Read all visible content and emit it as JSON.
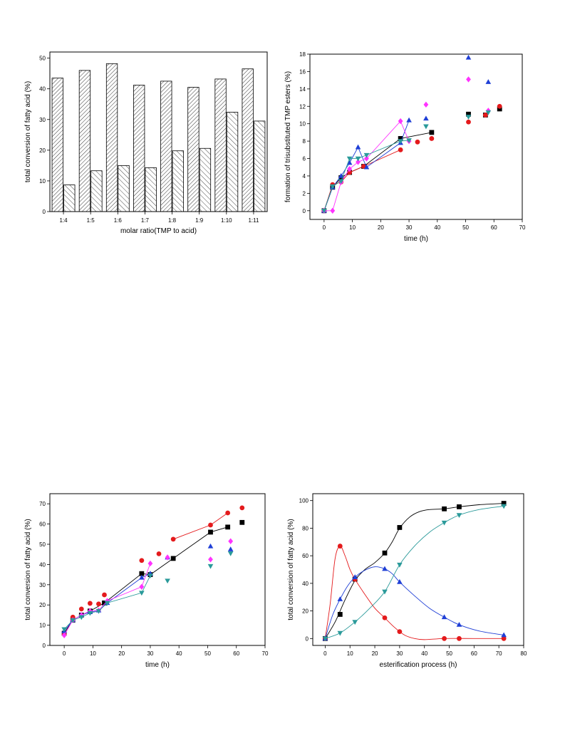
{
  "colors": {
    "black": "#000000",
    "red": "#e41a1c",
    "blue": "#1f3fd6",
    "magenta": "#ff33ff",
    "teal": "#2a9a9a"
  },
  "chart_data": [
    {
      "id": "chart1",
      "type": "bar",
      "xlabel": "molar ratio(TMP to acid)",
      "ylabel": "total conversion of fatty acid (%)",
      "ylim": [
        0,
        52
      ],
      "yticks": [
        0,
        10,
        20,
        30,
        40,
        50
      ],
      "categories": [
        "1:4",
        "1:5",
        "1:6",
        "1:7",
        "1:8",
        "1:9",
        "1:10",
        "1:11"
      ],
      "series": [
        {
          "values": [
            43.5,
            46,
            48.2,
            41.2,
            42.5,
            40.5,
            43.2,
            46.5
          ],
          "pattern": "hatch-dense"
        },
        {
          "values": [
            8.7,
            13.3,
            15,
            14.3,
            19.8,
            20.6,
            32.4,
            29.5
          ],
          "pattern": "hatch-sparse"
        }
      ]
    },
    {
      "id": "chart2",
      "type": "line",
      "xlabel": "time (h)",
      "ylabel": "formation of trisubstituted TMP esters (%)",
      "xlim": [
        -5,
        70
      ],
      "ylim": [
        -1,
        18
      ],
      "xticks": [
        0,
        10,
        20,
        30,
        40,
        50,
        60,
        70
      ],
      "yticks": [
        0,
        2,
        4,
        6,
        8,
        10,
        12,
        14,
        16,
        18
      ],
      "series": [
        {
          "marker": "square",
          "color": "#000000",
          "line": [
            [
              0,
              0
            ],
            [
              3,
              2.7
            ],
            [
              6,
              3.8
            ],
            [
              9,
              4.4
            ],
            [
              14,
              5.1
            ],
            [
              27,
              8.3
            ],
            [
              38,
              9
            ]
          ],
          "points": [
            [
              51,
              11.1
            ],
            [
              57,
              11
            ],
            [
              62,
              11.7
            ]
          ]
        },
        {
          "marker": "circle",
          "color": "#e41a1c",
          "line": [
            [
              0,
              0
            ],
            [
              3,
              3
            ],
            [
              6,
              3.3
            ],
            [
              9,
              4.4
            ],
            [
              14,
              5.1
            ],
            [
              27,
              7
            ]
          ],
          "points": [
            [
              33,
              7.9
            ],
            [
              38,
              8.3
            ],
            [
              51,
              10.2
            ],
            [
              57,
              11
            ],
            [
              62,
              12
            ]
          ]
        },
        {
          "marker": "triangle",
          "color": "#1f3fd6",
          "line": [
            [
              0,
              0
            ],
            [
              3,
              2.7
            ],
            [
              6,
              4
            ],
            [
              9,
              5.5
            ],
            [
              12,
              7.3
            ],
            [
              15,
              5
            ],
            [
              27,
              7.8
            ],
            [
              30,
              10.4
            ]
          ],
          "points": [
            [
              36,
              10.6
            ],
            [
              51,
              17.6
            ],
            [
              58,
              14.8
            ]
          ]
        },
        {
          "marker": "diamond",
          "color": "#ff33ff",
          "line": [
            [
              0,
              0
            ],
            [
              3,
              0
            ],
            [
              6,
              3.3
            ],
            [
              9,
              4.8
            ],
            [
              12,
              5.6
            ],
            [
              15,
              6
            ],
            [
              27,
              10.3
            ],
            [
              30,
              8
            ]
          ],
          "points": [
            [
              36,
              12.2
            ],
            [
              51,
              15.1
            ],
            [
              58,
              11.5
            ]
          ]
        },
        {
          "marker": "triangle-down",
          "color": "#2a9a9a",
          "line": [
            [
              0,
              0
            ],
            [
              3,
              2.8
            ],
            [
              6,
              3.4
            ],
            [
              9,
              6
            ],
            [
              12,
              6
            ],
            [
              15,
              6.4
            ],
            [
              27,
              8
            ],
            [
              30,
              8.1
            ]
          ],
          "points": [
            [
              36,
              9.7
            ],
            [
              51,
              10.8
            ],
            [
              58,
              11.3
            ]
          ]
        }
      ]
    },
    {
      "id": "chart3",
      "type": "line",
      "xlabel": "time (h)",
      "ylabel": "total conversion of fatty acid (%)",
      "xlim": [
        -5,
        70
      ],
      "ylim": [
        0,
        75
      ],
      "xticks": [
        0,
        10,
        20,
        30,
        40,
        50,
        60,
        70
      ],
      "yticks": [
        0,
        10,
        20,
        30,
        40,
        50,
        60,
        70
      ],
      "series": [
        {
          "marker": "square",
          "color": "#000000",
          "line": [
            [
              0,
              6
            ],
            [
              3,
              12.5
            ],
            [
              6,
              15
            ],
            [
              9,
              17
            ],
            [
              14,
              21
            ],
            [
              27,
              35.5
            ],
            [
              30,
              35
            ],
            [
              38,
              43
            ],
            [
              51,
              56
            ],
            [
              57,
              58.5
            ]
          ],
          "points": [
            [
              62,
              60.8
            ]
          ]
        },
        {
          "marker": "circle",
          "color": "#e41a1c",
          "line": [
            [
              38,
              52.5
            ],
            [
              51,
              59.5
            ],
            [
              57,
              65.5
            ]
          ],
          "points": [
            [
              0,
              5.5
            ],
            [
              3,
              14
            ],
            [
              6,
              18
            ],
            [
              9,
              20.8
            ],
            [
              12,
              20.5
            ],
            [
              14,
              25
            ],
            [
              27,
              42
            ],
            [
              33,
              45.3
            ],
            [
              62,
              68
            ]
          ]
        },
        {
          "marker": "triangle",
          "color": "#1f3fd6",
          "line": [
            [
              0,
              7
            ],
            [
              3,
              12.5
            ],
            [
              6,
              15
            ],
            [
              9,
              16.5
            ],
            [
              12,
              17.3
            ],
            [
              15,
              21
            ],
            [
              27,
              33.5
            ],
            [
              30,
              35.5
            ]
          ],
          "points": [
            [
              36,
              43.5
            ],
            [
              51,
              49
            ],
            [
              58,
              47.5
            ]
          ]
        },
        {
          "marker": "diamond",
          "color": "#ff33ff",
          "line": [
            [
              0,
              5
            ],
            [
              3,
              12.5
            ],
            [
              6,
              15
            ],
            [
              9,
              17
            ],
            [
              12,
              17.3
            ],
            [
              15,
              22
            ],
            [
              27,
              29
            ],
            [
              30,
              40.5
            ]
          ],
          "points": [
            [
              36,
              43.5
            ],
            [
              51,
              42.5
            ],
            [
              58,
              51.5
            ]
          ]
        },
        {
          "marker": "triangle-down",
          "color": "#2a9a9a",
          "line": [
            [
              0,
              8
            ],
            [
              3,
              12.5
            ],
            [
              6,
              14
            ],
            [
              9,
              16
            ],
            [
              12,
              17
            ],
            [
              15,
              21
            ],
            [
              27,
              26
            ],
            [
              30,
              34.5
            ]
          ],
          "points": [
            [
              36,
              32
            ],
            [
              51,
              39.2
            ],
            [
              58,
              45.5
            ]
          ]
        }
      ]
    },
    {
      "id": "chart4",
      "type": "line",
      "xlabel": "esterification process (h)",
      "ylabel": "total conversion of fatty acid (%)",
      "xlim": [
        -5,
        80
      ],
      "ylim": [
        -5,
        105
      ],
      "xticks": [
        0,
        10,
        20,
        30,
        40,
        50,
        60,
        70,
        80
      ],
      "yticks": [
        0,
        20,
        40,
        60,
        80,
        100
      ],
      "series": [
        {
          "marker": "square",
          "color": "#000000",
          "points": [
            [
              0,
              0
            ],
            [
              6,
              17.5
            ],
            [
              12,
              43
            ],
            [
              24,
              62
            ],
            [
              30,
              80.5
            ],
            [
              48,
              94
            ],
            [
              54,
              95.5
            ],
            [
              72,
              98
            ]
          ],
          "curve": [
            [
              0,
              0
            ],
            [
              4,
              12
            ],
            [
              8,
              28
            ],
            [
              12,
              42
            ],
            [
              16,
              50
            ],
            [
              20,
              55
            ],
            [
              24,
              62
            ],
            [
              27,
              70
            ],
            [
              30,
              80
            ],
            [
              34,
              88
            ],
            [
              38,
              92
            ],
            [
              42,
              93.5
            ],
            [
              48,
              94
            ],
            [
              54,
              95.5
            ],
            [
              62,
              97
            ],
            [
              72,
              98
            ]
          ]
        },
        {
          "marker": "circle",
          "color": "#e41a1c",
          "points": [
            [
              0,
              0
            ],
            [
              6,
              67
            ],
            [
              12,
              43
            ],
            [
              24,
              15
            ],
            [
              30,
              5
            ],
            [
              48,
              0
            ],
            [
              54,
              0
            ],
            [
              72,
              0
            ]
          ],
          "curve": [
            [
              0,
              0
            ],
            [
              2,
              25
            ],
            [
              4,
              58
            ],
            [
              6,
              67
            ],
            [
              8,
              60
            ],
            [
              10,
              50
            ],
            [
              12,
              43
            ],
            [
              16,
              32
            ],
            [
              20,
              22
            ],
            [
              24,
              15
            ],
            [
              28,
              8
            ],
            [
              32,
              2.5
            ],
            [
              36,
              0
            ],
            [
              40,
              -0.8
            ],
            [
              48,
              0
            ],
            [
              60,
              0
            ],
            [
              72,
              0
            ]
          ]
        },
        {
          "marker": "triangle",
          "color": "#1f3fd6",
          "points": [
            [
              0,
              0
            ],
            [
              6,
              28.5
            ],
            [
              12,
              44.5
            ],
            [
              24,
              50.5
            ],
            [
              30,
              41
            ],
            [
              48,
              15.5
            ],
            [
              54,
              10
            ],
            [
              72,
              2.5
            ]
          ],
          "curve": [
            [
              0,
              0
            ],
            [
              3,
              17
            ],
            [
              6,
              28.5
            ],
            [
              9,
              38
            ],
            [
              12,
              44.5
            ],
            [
              16,
              49.5
            ],
            [
              20,
              52
            ],
            [
              24,
              50.5
            ],
            [
              27,
              47
            ],
            [
              30,
              41
            ],
            [
              36,
              31
            ],
            [
              42,
              22
            ],
            [
              48,
              15.5
            ],
            [
              54,
              10
            ],
            [
              62,
              5.5
            ],
            [
              72,
              2.5
            ]
          ]
        },
        {
          "marker": "triangle-down",
          "color": "#2a9a9a",
          "points": [
            [
              0,
              0
            ],
            [
              6,
              4
            ],
            [
              12,
              12
            ],
            [
              24,
              34
            ],
            [
              30,
              53.5
            ],
            [
              48,
              84
            ],
            [
              54,
              89.5
            ],
            [
              72,
              96
            ]
          ],
          "curve": [
            [
              0,
              0
            ],
            [
              6,
              4
            ],
            [
              12,
              12
            ],
            [
              18,
              22
            ],
            [
              24,
              34
            ],
            [
              30,
              53.5
            ],
            [
              36,
              67
            ],
            [
              42,
              77
            ],
            [
              48,
              84
            ],
            [
              54,
              89.5
            ],
            [
              62,
              93.5
            ],
            [
              72,
              96
            ]
          ]
        }
      ]
    }
  ]
}
